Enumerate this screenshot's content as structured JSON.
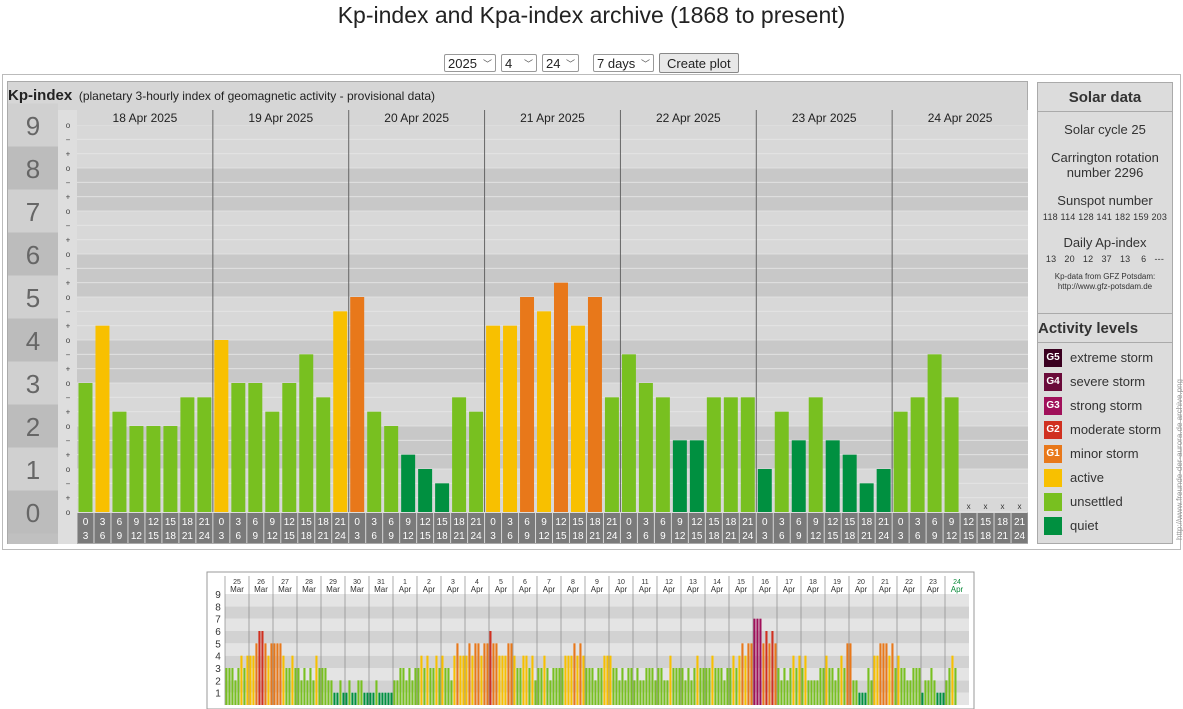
{
  "page": {
    "title": "Kp-index and Kpa-index archive (1868 to present)"
  },
  "controls": {
    "year": "2025",
    "month": "4",
    "day": "24",
    "span": "7 days",
    "create_label": "Create plot"
  },
  "kp_panel": {
    "title": "Kp-index",
    "subtitle": "(planetary 3-hourly index of geomagnetic activity - provisional data)"
  },
  "solar": {
    "title": "Solar data",
    "cycle": "Solar cycle 25",
    "carrington_1": "Carrington rotation",
    "carrington_2": "number 2296",
    "sunspot_title": "Sunspot number",
    "sunspot_values": "118 114 128 141 182 159 203",
    "ap_title": "Daily Ap-index",
    "ap_values": "13   20   12   37   13    6   ---",
    "source_1": "Kp-data from GFZ Potsdam:",
    "source_2": "http://www.gfz-potsdam.de"
  },
  "activity": {
    "title": "Activity levels",
    "levels": [
      {
        "code": "G5",
        "label": "extreme storm",
        "color": "#3a0020"
      },
      {
        "code": "G4",
        "label": "severe storm",
        "color": "#6a0a3a"
      },
      {
        "code": "G3",
        "label": "strong storm",
        "color": "#a0105a"
      },
      {
        "code": "G2",
        "label": "moderate storm",
        "color": "#d03020"
      },
      {
        "code": "G1",
        "label": "minor storm",
        "color": "#e8781a"
      },
      {
        "code": "",
        "label": "active",
        "color": "#f8c000"
      },
      {
        "code": "",
        "label": "unsettled",
        "color": "#78c020"
      },
      {
        "code": "",
        "label": "quiet",
        "color": "#009040"
      }
    ]
  },
  "side_note": "http://www.freunde-der-aurora.de  archive.png",
  "chart_data": [
    {
      "type": "bar",
      "title": "Kp-index",
      "ylim": [
        0,
        9
      ],
      "y_ticks": [
        "0",
        "1",
        "2",
        "3",
        "4",
        "5",
        "6",
        "7",
        "8",
        "9"
      ],
      "minor_ticks": [
        "o",
        "+",
        "−"
      ],
      "days": [
        "18 Apr 2025",
        "19 Apr 2025",
        "20 Apr 2025",
        "21 Apr 2025",
        "22 Apr 2025",
        "23 Apr 2025",
        "24 Apr 2025"
      ],
      "hour_labels": [
        [
          "0",
          "3"
        ],
        [
          "3",
          "6"
        ],
        [
          "6",
          "9"
        ],
        [
          "9",
          "12"
        ],
        [
          "12",
          "15"
        ],
        [
          "15",
          "18"
        ],
        [
          "18",
          "21"
        ],
        [
          "21",
          "24"
        ]
      ],
      "missing_marker": "x",
      "values": [
        3.0,
        4.333,
        2.333,
        2.0,
        2.0,
        2.0,
        2.667,
        2.667,
        4.0,
        3.0,
        3.0,
        2.333,
        3.0,
        3.667,
        2.667,
        4.667,
        5.0,
        2.333,
        2.0,
        1.333,
        1.0,
        0.667,
        2.667,
        2.333,
        4.333,
        4.333,
        5.0,
        4.667,
        5.333,
        4.333,
        5.0,
        2.667,
        3.667,
        3.0,
        2.667,
        1.667,
        1.667,
        2.667,
        2.667,
        2.667,
        1.0,
        2.333,
        1.667,
        2.667,
        1.667,
        1.333,
        0.667,
        1.0,
        2.333,
        2.667,
        3.667,
        2.667,
        null,
        null,
        null,
        null
      ]
    },
    {
      "type": "bar",
      "title": "Kp-index 31-day overview",
      "ylim": [
        0,
        9
      ],
      "y_ticks": [
        "1",
        "2",
        "3",
        "4",
        "5",
        "6",
        "7",
        "8",
        "9"
      ],
      "days": [
        {
          "d": "25",
          "m": "Mar"
        },
        {
          "d": "26",
          "m": "Mar"
        },
        {
          "d": "27",
          "m": "Mar"
        },
        {
          "d": "28",
          "m": "Mar"
        },
        {
          "d": "29",
          "m": "Mar"
        },
        {
          "d": "30",
          "m": "Mar"
        },
        {
          "d": "31",
          "m": "Mar"
        },
        {
          "d": "1",
          "m": "Apr"
        },
        {
          "d": "2",
          "m": "Apr"
        },
        {
          "d": "3",
          "m": "Apr"
        },
        {
          "d": "4",
          "m": "Apr"
        },
        {
          "d": "5",
          "m": "Apr"
        },
        {
          "d": "6",
          "m": "Apr"
        },
        {
          "d": "7",
          "m": "Apr"
        },
        {
          "d": "8",
          "m": "Apr"
        },
        {
          "d": "9",
          "m": "Apr"
        },
        {
          "d": "10",
          "m": "Apr"
        },
        {
          "d": "11",
          "m": "Apr"
        },
        {
          "d": "12",
          "m": "Apr"
        },
        {
          "d": "13",
          "m": "Apr"
        },
        {
          "d": "14",
          "m": "Apr"
        },
        {
          "d": "15",
          "m": "Apr"
        },
        {
          "d": "16",
          "m": "Apr"
        },
        {
          "d": "17",
          "m": "Apr"
        },
        {
          "d": "18",
          "m": "Apr"
        },
        {
          "d": "19",
          "m": "Apr"
        },
        {
          "d": "20",
          "m": "Apr"
        },
        {
          "d": "21",
          "m": "Apr"
        },
        {
          "d": "22",
          "m": "Apr"
        },
        {
          "d": "23",
          "m": "Apr"
        },
        {
          "d": "24",
          "m": "Apr"
        }
      ],
      "values": [
        3,
        3,
        3,
        2,
        3,
        4,
        3,
        4,
        4,
        4,
        5,
        6,
        6,
        5,
        4,
        5,
        5,
        5,
        5,
        4,
        3,
        3,
        4,
        3,
        3,
        2,
        3,
        2,
        3,
        2,
        4,
        3,
        3,
        3,
        2,
        2,
        1,
        1,
        2,
        1,
        1,
        2,
        1,
        1,
        2,
        2,
        1,
        1,
        1,
        1,
        2,
        1,
        1,
        1,
        1,
        1,
        2,
        2,
        3,
        3,
        2,
        3,
        2,
        3,
        3,
        4,
        3,
        4,
        3,
        3,
        4,
        3,
        4,
        3,
        3,
        2,
        4,
        5,
        4,
        4,
        4,
        5,
        4,
        5,
        5,
        4,
        5,
        5,
        6,
        5,
        5,
        4,
        4,
        4,
        5,
        5,
        4,
        3,
        3,
        4,
        4,
        3,
        4,
        2,
        3,
        3,
        4,
        3,
        2,
        3,
        3,
        3,
        3,
        4,
        4,
        4,
        5,
        4,
        5,
        4,
        3,
        3,
        3,
        2,
        3,
        3,
        4,
        4,
        4,
        3,
        3,
        2,
        3,
        2,
        3,
        3,
        2,
        3,
        2,
        2,
        3,
        3,
        3,
        2,
        3,
        3,
        2,
        2,
        4,
        3,
        3,
        3,
        3,
        2,
        3,
        2,
        3,
        4,
        3,
        3,
        3,
        3,
        4,
        3,
        3,
        3,
        2,
        3,
        3,
        4,
        3,
        4,
        5,
        4,
        5,
        5,
        7,
        7,
        7,
        5,
        6,
        5,
        6,
        5,
        3,
        2,
        3,
        2,
        3,
        4,
        3,
        4,
        3,
        4,
        2,
        2,
        2,
        2,
        3,
        3,
        4,
        3,
        3,
        2,
        3,
        4,
        3,
        5,
        5,
        2,
        2,
        1,
        1,
        1,
        3,
        2,
        4,
        4,
        5,
        5,
        5,
        4,
        5,
        3,
        4,
        3,
        3,
        2,
        2,
        3,
        3,
        3,
        1,
        2,
        2,
        3,
        2,
        1,
        1,
        1,
        2,
        3,
        4,
        3
      ]
    }
  ]
}
